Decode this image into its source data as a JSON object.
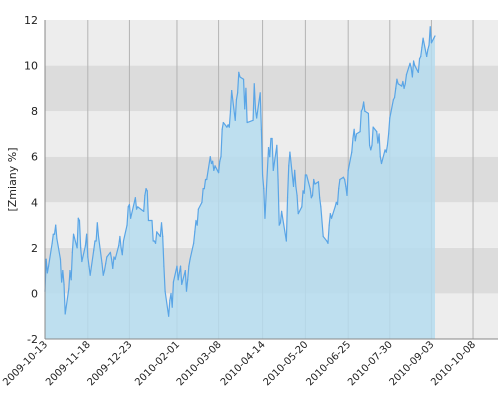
{
  "chart_data": {
    "type": "area",
    "ylabel": "[Zmiany %]",
    "xlabel": "",
    "title": "",
    "ylim": [
      -2,
      12
    ],
    "yticks": [
      -2,
      0,
      2,
      4,
      6,
      8,
      10,
      12
    ],
    "xlim": [
      "2009-10-13",
      "2010-10-29"
    ],
    "xticks": [
      "2009-10-13",
      "2009-11-18",
      "2009-12-23",
      "2010-02-01",
      "2010-03-08",
      "2010-04-14",
      "2010-05-20",
      "2010-06-25",
      "2010-07-30",
      "2010-09-03",
      "2010-10-08"
    ],
    "grid": true,
    "colors": {
      "line": "#5aa5e6",
      "fill": "#b5dcee",
      "band_dark": "#dcdcdc",
      "band_light": "#ededed",
      "vgrid": "#b4b4b4",
      "axis": "#888888"
    },
    "series": [
      {
        "name": "",
        "points": [
          [
            "2009-10-13",
            0.1
          ],
          [
            "2009-10-14",
            1.5
          ],
          [
            "2009-10-15",
            0.9
          ],
          [
            "2009-10-16",
            1.2
          ],
          [
            "2009-10-19",
            2.2
          ],
          [
            "2009-10-20",
            2.6
          ],
          [
            "2009-10-21",
            2.6
          ],
          [
            "2009-10-22",
            3.0
          ],
          [
            "2009-10-23",
            2.4
          ],
          [
            "2009-10-26",
            1.5
          ],
          [
            "2009-10-27",
            0.5
          ],
          [
            "2009-10-28",
            1.0
          ],
          [
            "2009-10-29",
            0.4
          ],
          [
            "2009-10-30",
            -0.9
          ],
          [
            "2009-11-02",
            0.2
          ],
          [
            "2009-11-03",
            1.0
          ],
          [
            "2009-11-04",
            0.6
          ],
          [
            "2009-11-05",
            1.8
          ],
          [
            "2009-11-06",
            2.6
          ],
          [
            "2009-11-09",
            2.0
          ],
          [
            "2009-11-10",
            3.3
          ],
          [
            "2009-11-11",
            3.2
          ],
          [
            "2009-11-12",
            2.0
          ],
          [
            "2009-11-13",
            1.4
          ],
          [
            "2009-11-16",
            2.1
          ],
          [
            "2009-11-17",
            2.6
          ],
          [
            "2009-11-18",
            1.6
          ],
          [
            "2009-11-19",
            1.2
          ],
          [
            "2009-11-20",
            0.8
          ],
          [
            "2009-11-23",
            1.9
          ],
          [
            "2009-11-24",
            2.3
          ],
          [
            "2009-11-25",
            2.3
          ],
          [
            "2009-11-26",
            3.1
          ],
          [
            "2009-11-27",
            2.5
          ],
          [
            "2009-11-30",
            1.3
          ],
          [
            "2009-12-01",
            0.8
          ],
          [
            "2009-12-02",
            1.0
          ],
          [
            "2009-12-03",
            1.3
          ],
          [
            "2009-12-04",
            1.6
          ],
          [
            "2009-12-07",
            1.8
          ],
          [
            "2009-12-08",
            1.5
          ],
          [
            "2009-12-09",
            1.1
          ],
          [
            "2009-12-10",
            1.6
          ],
          [
            "2009-12-11",
            1.5
          ],
          [
            "2009-12-14",
            2.1
          ],
          [
            "2009-12-15",
            2.5
          ],
          [
            "2009-12-16",
            2.0
          ],
          [
            "2009-12-17",
            1.7
          ],
          [
            "2009-12-18",
            2.3
          ],
          [
            "2009-12-21",
            3.0
          ],
          [
            "2009-12-22",
            3.8
          ],
          [
            "2009-12-23",
            3.9
          ],
          [
            "2009-12-24",
            3.3
          ],
          [
            "2009-12-28",
            4.2
          ],
          [
            "2009-12-29",
            3.7
          ],
          [
            "2009-12-30",
            3.8
          ],
          [
            "2010-01-04",
            3.6
          ],
          [
            "2010-01-05",
            4.3
          ],
          [
            "2010-01-06",
            4.6
          ],
          [
            "2010-01-07",
            4.5
          ],
          [
            "2010-01-08",
            3.2
          ],
          [
            "2010-01-11",
            3.2
          ],
          [
            "2010-01-12",
            2.3
          ],
          [
            "2010-01-13",
            2.3
          ],
          [
            "2010-01-14",
            2.2
          ],
          [
            "2010-01-15",
            2.7
          ],
          [
            "2010-01-18",
            2.5
          ],
          [
            "2010-01-19",
            3.1
          ],
          [
            "2010-01-20",
            2.5
          ],
          [
            "2010-01-21",
            1.2
          ],
          [
            "2010-01-22",
            0.1
          ],
          [
            "2010-01-25",
            -1.0
          ],
          [
            "2010-01-26",
            -0.3
          ],
          [
            "2010-01-27",
            0.0
          ],
          [
            "2010-01-28",
            -0.6
          ],
          [
            "2010-01-29",
            0.5
          ],
          [
            "2010-02-01",
            1.2
          ],
          [
            "2010-02-02",
            0.6
          ],
          [
            "2010-02-03",
            0.9
          ],
          [
            "2010-02-04",
            1.2
          ],
          [
            "2010-02-05",
            0.4
          ],
          [
            "2010-02-08",
            1.0
          ],
          [
            "2010-02-09",
            0.1
          ],
          [
            "2010-02-10",
            0.6
          ],
          [
            "2010-02-11",
            1.2
          ],
          [
            "2010-02-12",
            1.5
          ],
          [
            "2010-02-15",
            2.2
          ],
          [
            "2010-02-16",
            2.7
          ],
          [
            "2010-02-17",
            3.2
          ],
          [
            "2010-02-18",
            3.0
          ],
          [
            "2010-02-19",
            3.7
          ],
          [
            "2010-02-22",
            4.0
          ],
          [
            "2010-02-23",
            4.6
          ],
          [
            "2010-02-24",
            4.6
          ],
          [
            "2010-02-25",
            5.0
          ],
          [
            "2010-02-26",
            5.0
          ],
          [
            "2010-03-01",
            6.0
          ],
          [
            "2010-03-02",
            5.7
          ],
          [
            "2010-03-03",
            5.8
          ],
          [
            "2010-03-04",
            5.4
          ],
          [
            "2010-03-05",
            5.6
          ],
          [
            "2010-03-08",
            5.3
          ],
          [
            "2010-03-09",
            5.8
          ],
          [
            "2010-03-10",
            6.0
          ],
          [
            "2010-03-11",
            7.2
          ],
          [
            "2010-03-12",
            7.5
          ],
          [
            "2010-03-15",
            7.3
          ],
          [
            "2010-03-16",
            7.4
          ],
          [
            "2010-03-17",
            7.3
          ],
          [
            "2010-03-18",
            8.0
          ],
          [
            "2010-03-19",
            8.9
          ],
          [
            "2010-03-22",
            7.6
          ],
          [
            "2010-03-23",
            8.5
          ],
          [
            "2010-03-24",
            8.8
          ],
          [
            "2010-03-25",
            9.7
          ],
          [
            "2010-03-26",
            9.5
          ],
          [
            "2010-03-29",
            9.4
          ],
          [
            "2010-03-30",
            8.1
          ],
          [
            "2010-03-31",
            9.0
          ],
          [
            "2010-04-01",
            7.5
          ],
          [
            "2010-04-06",
            7.6
          ],
          [
            "2010-04-07",
            9.2
          ],
          [
            "2010-04-08",
            8.1
          ],
          [
            "2010-04-09",
            7.7
          ],
          [
            "2010-04-12",
            8.8
          ],
          [
            "2010-04-13",
            7.2
          ],
          [
            "2010-04-14",
            5.2
          ],
          [
            "2010-04-15",
            4.6
          ],
          [
            "2010-04-16",
            3.3
          ],
          [
            "2010-04-19",
            6.4
          ],
          [
            "2010-04-20",
            6.0
          ],
          [
            "2010-04-21",
            6.8
          ],
          [
            "2010-04-22",
            6.8
          ],
          [
            "2010-04-23",
            5.4
          ],
          [
            "2010-04-26",
            6.5
          ],
          [
            "2010-04-27",
            5.0
          ],
          [
            "2010-04-28",
            3.0
          ],
          [
            "2010-04-29",
            3.1
          ],
          [
            "2010-04-30",
            3.6
          ],
          [
            "2010-05-04",
            2.3
          ],
          [
            "2010-05-05",
            4.2
          ],
          [
            "2010-05-06",
            5.6
          ],
          [
            "2010-05-07",
            6.2
          ],
          [
            "2010-05-10",
            4.7
          ],
          [
            "2010-05-11",
            5.4
          ],
          [
            "2010-05-12",
            4.7
          ],
          [
            "2010-05-13",
            4.3
          ],
          [
            "2010-05-14",
            3.5
          ],
          [
            "2010-05-17",
            3.8
          ],
          [
            "2010-05-18",
            4.5
          ],
          [
            "2010-05-19",
            4.4
          ],
          [
            "2010-05-20",
            5.2
          ],
          [
            "2010-05-21",
            5.2
          ],
          [
            "2010-05-24",
            4.6
          ],
          [
            "2010-05-25",
            4.2
          ],
          [
            "2010-05-26",
            4.3
          ],
          [
            "2010-05-27",
            5.0
          ],
          [
            "2010-05-28",
            4.8
          ],
          [
            "2010-05-31",
            4.9
          ],
          [
            "2010-06-01",
            4.2
          ],
          [
            "2010-06-02",
            3.8
          ],
          [
            "2010-06-04",
            2.5
          ],
          [
            "2010-06-07",
            2.3
          ],
          [
            "2010-06-08",
            2.2
          ],
          [
            "2010-06-09",
            3.0
          ],
          [
            "2010-06-10",
            3.5
          ],
          [
            "2010-06-11",
            3.3
          ],
          [
            "2010-06-14",
            3.8
          ],
          [
            "2010-06-15",
            4.0
          ],
          [
            "2010-06-16",
            3.9
          ],
          [
            "2010-06-17",
            4.6
          ],
          [
            "2010-06-18",
            5.0
          ],
          [
            "2010-06-21",
            5.1
          ],
          [
            "2010-06-22",
            5.0
          ],
          [
            "2010-06-23",
            4.7
          ],
          [
            "2010-06-24",
            4.3
          ],
          [
            "2010-06-25",
            5.4
          ],
          [
            "2010-06-28",
            6.2
          ],
          [
            "2010-06-29",
            6.8
          ],
          [
            "2010-06-30",
            7.2
          ],
          [
            "2010-07-01",
            6.7
          ],
          [
            "2010-07-02",
            7.0
          ],
          [
            "2010-07-05",
            7.1
          ],
          [
            "2010-07-06",
            8.0
          ],
          [
            "2010-07-07",
            8.1
          ],
          [
            "2010-07-08",
            8.4
          ],
          [
            "2010-07-09",
            8.0
          ],
          [
            "2010-07-12",
            7.9
          ],
          [
            "2010-07-13",
            6.5
          ],
          [
            "2010-07-14",
            6.3
          ],
          [
            "2010-07-15",
            6.5
          ],
          [
            "2010-07-16",
            7.3
          ],
          [
            "2010-07-19",
            7.1
          ],
          [
            "2010-07-20",
            6.6
          ],
          [
            "2010-07-21",
            7.0
          ],
          [
            "2010-07-22",
            6.0
          ],
          [
            "2010-07-23",
            5.7
          ],
          [
            "2010-07-26",
            6.3
          ],
          [
            "2010-07-27",
            6.2
          ],
          [
            "2010-07-28",
            6.5
          ],
          [
            "2010-07-29",
            7.0
          ],
          [
            "2010-07-30",
            7.7
          ],
          [
            "2010-08-02",
            8.5
          ],
          [
            "2010-08-03",
            8.6
          ],
          [
            "2010-08-04",
            9.0
          ],
          [
            "2010-08-05",
            9.4
          ],
          [
            "2010-08-06",
            9.2
          ],
          [
            "2010-08-09",
            9.1
          ],
          [
            "2010-08-10",
            9.3
          ],
          [
            "2010-08-11",
            9.0
          ],
          [
            "2010-08-12",
            9.2
          ],
          [
            "2010-08-13",
            9.6
          ],
          [
            "2010-08-16",
            10.1
          ],
          [
            "2010-08-17",
            9.9
          ],
          [
            "2010-08-18",
            9.5
          ],
          [
            "2010-08-19",
            10.2
          ],
          [
            "2010-08-20",
            10.0
          ],
          [
            "2010-08-23",
            9.7
          ],
          [
            "2010-08-24",
            10.3
          ],
          [
            "2010-08-25",
            10.4
          ],
          [
            "2010-08-26",
            10.8
          ],
          [
            "2010-08-27",
            11.2
          ],
          [
            "2010-08-30",
            10.4
          ],
          [
            "2010-08-31",
            10.7
          ],
          [
            "2010-09-01",
            10.9
          ],
          [
            "2010-09-02",
            11.7
          ],
          [
            "2010-09-03",
            11.0
          ],
          [
            "2010-09-06",
            11.3
          ]
        ]
      }
    ]
  }
}
